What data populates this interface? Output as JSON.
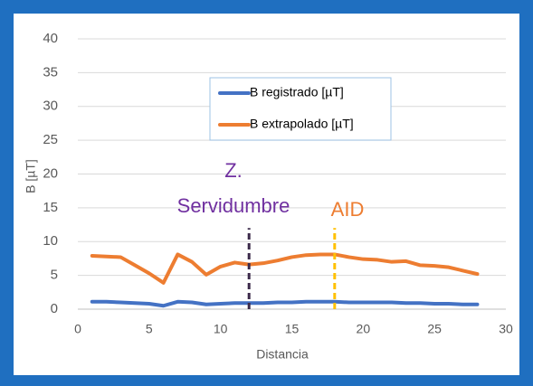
{
  "chart_data": {
    "type": "line",
    "xlabel": "Distancia",
    "ylabel": "B [µT]",
    "x": [
      1,
      2,
      3,
      4,
      5,
      6,
      7,
      8,
      9,
      10,
      11,
      12,
      13,
      14,
      15,
      16,
      17,
      18,
      19,
      20,
      21,
      22,
      23,
      24,
      25,
      26,
      27,
      28
    ],
    "series": [
      {
        "name": "B registrado [µT]",
        "color": "#4472c4",
        "values": [
          1.1,
          1.1,
          1.0,
          0.9,
          0.8,
          0.5,
          1.1,
          1.0,
          0.7,
          0.8,
          0.9,
          0.9,
          0.9,
          1.0,
          1.0,
          1.1,
          1.1,
          1.1,
          1.0,
          1.0,
          1.0,
          1.0,
          0.9,
          0.9,
          0.8,
          0.8,
          0.7,
          0.7
        ]
      },
      {
        "name": "B extrapolado [µT]",
        "color": "#ed7d31",
        "values": [
          7.9,
          7.8,
          7.7,
          6.5,
          5.3,
          3.9,
          8.1,
          7.0,
          5.1,
          6.3,
          6.9,
          6.6,
          6.8,
          7.2,
          7.7,
          8.0,
          8.1,
          8.1,
          7.7,
          7.4,
          7.3,
          7.0,
          7.1,
          6.5,
          6.4,
          6.2,
          5.7,
          5.2
        ]
      }
    ],
    "xlim": [
      0,
      30
    ],
    "xticks": [
      0,
      5,
      10,
      15,
      20,
      25,
      30
    ],
    "ylim": [
      0,
      40
    ],
    "yticks": [
      0,
      5,
      10,
      15,
      20,
      25,
      30,
      35,
      40
    ],
    "grid": true,
    "legend": "top",
    "annotations": [
      {
        "text": [
          "Z.",
          "Servidumbre"
        ],
        "color": "#7030a0"
      },
      {
        "text": [
          "AID"
        ],
        "color": "#ed7d31"
      }
    ],
    "reference_lines": [
      {
        "x": 12,
        "ymax": 12,
        "color": "#3b2a4a"
      },
      {
        "x": 18,
        "ymax": 12,
        "color": "#ffc000"
      }
    ]
  }
}
